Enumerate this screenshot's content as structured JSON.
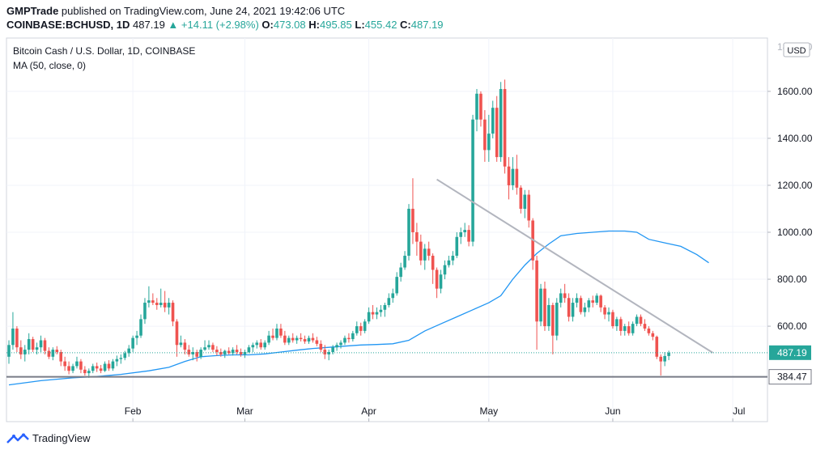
{
  "header": {
    "line1": {
      "author": "GMPTrade",
      "published_text": "published on TradingView.com, June 24, 2021 19:42:06 UTC"
    },
    "line2": {
      "symbol": "COINBASE:BCHUSD, 1D",
      "last": "487.19",
      "change": "▲ +14.11 (+2.98%)",
      "o_label": "O:",
      "o": "473.08",
      "h_label": "H:",
      "h": "495.85",
      "l_label": "L:",
      "l": "455.42",
      "c_label": "C:",
      "c": "487.19"
    }
  },
  "legend": {
    "instrument": "Bitcoin Cash / U.S. Dollar, 1D, COINBASE",
    "indicator": "MA (50, close, 0)"
  },
  "currency_badge": "USD",
  "footer": {
    "brand": "TradingView"
  },
  "colors": {
    "up": "#26a69a",
    "down": "#ef5350",
    "ma": "#2196f3",
    "trendline": "#b2b5be",
    "support": "#787b86",
    "price_label": "#26a69a"
  },
  "chart_data": {
    "type": "candlestick",
    "ylim": [
      300,
      1800
    ],
    "y_ticks": [
      "600.00",
      "800.00",
      "1000.00",
      "1200.00",
      "1400.00",
      "1600.00"
    ],
    "y_tick_values": [
      600,
      800,
      1000,
      1200,
      1400,
      1600
    ],
    "top_tick_partial": "1800.00",
    "x_ticks": [
      "Feb",
      "Mar",
      "Apr",
      "May",
      "Jun",
      "Jul"
    ],
    "x_tick_days": [
      31,
      59,
      90,
      120,
      151,
      181
    ],
    "x_range_days": [
      0,
      183
    ],
    "last_price": {
      "value": 487.19,
      "label": "487.19"
    },
    "support_line": {
      "value": 384.47,
      "label": "384.47"
    },
    "trendline": {
      "from": {
        "day": 107,
        "value": 1225
      },
      "to": {
        "day": 176,
        "value": 487
      }
    },
    "candles": [
      {
        "o": 470,
        "h": 540,
        "l": 440,
        "c": 520
      },
      {
        "o": 520,
        "h": 660,
        "l": 500,
        "c": 590
      },
      {
        "o": 590,
        "h": 600,
        "l": 490,
        "c": 510
      },
      {
        "o": 510,
        "h": 540,
        "l": 460,
        "c": 480
      },
      {
        "o": 480,
        "h": 520,
        "l": 450,
        "c": 500
      },
      {
        "o": 500,
        "h": 570,
        "l": 480,
        "c": 545
      },
      {
        "o": 545,
        "h": 555,
        "l": 490,
        "c": 500
      },
      {
        "o": 500,
        "h": 530,
        "l": 480,
        "c": 510
      },
      {
        "o": 510,
        "h": 560,
        "l": 490,
        "c": 540
      },
      {
        "o": 540,
        "h": 550,
        "l": 480,
        "c": 495
      },
      {
        "o": 495,
        "h": 510,
        "l": 460,
        "c": 470
      },
      {
        "o": 470,
        "h": 510,
        "l": 455,
        "c": 500
      },
      {
        "o": 500,
        "h": 515,
        "l": 480,
        "c": 490
      },
      {
        "o": 490,
        "h": 500,
        "l": 430,
        "c": 450
      },
      {
        "o": 450,
        "h": 470,
        "l": 410,
        "c": 430
      },
      {
        "o": 430,
        "h": 450,
        "l": 395,
        "c": 410
      },
      {
        "o": 410,
        "h": 440,
        "l": 400,
        "c": 430
      },
      {
        "o": 430,
        "h": 470,
        "l": 420,
        "c": 450
      },
      {
        "o": 450,
        "h": 460,
        "l": 400,
        "c": 415
      },
      {
        "o": 415,
        "h": 430,
        "l": 390,
        "c": 400
      },
      {
        "o": 400,
        "h": 420,
        "l": 380,
        "c": 410
      },
      {
        "o": 410,
        "h": 440,
        "l": 400,
        "c": 430
      },
      {
        "o": 430,
        "h": 445,
        "l": 405,
        "c": 420
      },
      {
        "o": 420,
        "h": 435,
        "l": 400,
        "c": 410
      },
      {
        "o": 410,
        "h": 450,
        "l": 405,
        "c": 440
      },
      {
        "o": 440,
        "h": 455,
        "l": 410,
        "c": 420
      },
      {
        "o": 420,
        "h": 460,
        "l": 410,
        "c": 450
      },
      {
        "o": 450,
        "h": 475,
        "l": 430,
        "c": 460
      },
      {
        "o": 460,
        "h": 480,
        "l": 440,
        "c": 465
      },
      {
        "o": 465,
        "h": 495,
        "l": 455,
        "c": 485
      },
      {
        "o": 485,
        "h": 520,
        "l": 470,
        "c": 505
      },
      {
        "o": 505,
        "h": 560,
        "l": 490,
        "c": 550
      },
      {
        "o": 550,
        "h": 580,
        "l": 520,
        "c": 560
      },
      {
        "o": 560,
        "h": 650,
        "l": 550,
        "c": 630
      },
      {
        "o": 630,
        "h": 720,
        "l": 610,
        "c": 700
      },
      {
        "o": 700,
        "h": 770,
        "l": 680,
        "c": 710
      },
      {
        "o": 710,
        "h": 740,
        "l": 690,
        "c": 700
      },
      {
        "o": 700,
        "h": 720,
        "l": 670,
        "c": 690
      },
      {
        "o": 690,
        "h": 760,
        "l": 680,
        "c": 700
      },
      {
        "o": 700,
        "h": 750,
        "l": 660,
        "c": 680
      },
      {
        "o": 680,
        "h": 720,
        "l": 650,
        "c": 700
      },
      {
        "o": 700,
        "h": 710,
        "l": 600,
        "c": 620
      },
      {
        "o": 620,
        "h": 630,
        "l": 470,
        "c": 520
      },
      {
        "o": 520,
        "h": 560,
        "l": 510,
        "c": 530
      },
      {
        "o": 530,
        "h": 545,
        "l": 480,
        "c": 500
      },
      {
        "o": 500,
        "h": 520,
        "l": 470,
        "c": 480
      },
      {
        "o": 480,
        "h": 510,
        "l": 455,
        "c": 490
      },
      {
        "o": 490,
        "h": 500,
        "l": 450,
        "c": 470
      },
      {
        "o": 470,
        "h": 510,
        "l": 460,
        "c": 500
      },
      {
        "o": 500,
        "h": 540,
        "l": 495,
        "c": 510
      },
      {
        "o": 510,
        "h": 540,
        "l": 500,
        "c": 520
      },
      {
        "o": 520,
        "h": 530,
        "l": 490,
        "c": 500
      },
      {
        "o": 500,
        "h": 515,
        "l": 475,
        "c": 490
      },
      {
        "o": 490,
        "h": 505,
        "l": 470,
        "c": 480
      },
      {
        "o": 480,
        "h": 500,
        "l": 465,
        "c": 495
      },
      {
        "o": 495,
        "h": 510,
        "l": 480,
        "c": 485
      },
      {
        "o": 485,
        "h": 510,
        "l": 475,
        "c": 500
      },
      {
        "o": 500,
        "h": 520,
        "l": 480,
        "c": 490
      },
      {
        "o": 490,
        "h": 505,
        "l": 470,
        "c": 480
      },
      {
        "o": 480,
        "h": 500,
        "l": 465,
        "c": 490
      },
      {
        "o": 490,
        "h": 520,
        "l": 485,
        "c": 510
      },
      {
        "o": 510,
        "h": 530,
        "l": 490,
        "c": 520
      },
      {
        "o": 520,
        "h": 540,
        "l": 505,
        "c": 530
      },
      {
        "o": 530,
        "h": 545,
        "l": 500,
        "c": 510
      },
      {
        "o": 510,
        "h": 540,
        "l": 500,
        "c": 530
      },
      {
        "o": 530,
        "h": 580,
        "l": 520,
        "c": 560
      },
      {
        "o": 560,
        "h": 590,
        "l": 540,
        "c": 550
      },
      {
        "o": 550,
        "h": 610,
        "l": 540,
        "c": 590
      },
      {
        "o": 590,
        "h": 610,
        "l": 550,
        "c": 560
      },
      {
        "o": 560,
        "h": 580,
        "l": 520,
        "c": 530
      },
      {
        "o": 530,
        "h": 560,
        "l": 520,
        "c": 550
      },
      {
        "o": 550,
        "h": 570,
        "l": 530,
        "c": 540
      },
      {
        "o": 540,
        "h": 560,
        "l": 525,
        "c": 550
      },
      {
        "o": 550,
        "h": 570,
        "l": 535,
        "c": 545
      },
      {
        "o": 545,
        "h": 560,
        "l": 525,
        "c": 535
      },
      {
        "o": 535,
        "h": 560,
        "l": 525,
        "c": 550
      },
      {
        "o": 550,
        "h": 570,
        "l": 530,
        "c": 540
      },
      {
        "o": 540,
        "h": 555,
        "l": 515,
        "c": 525
      },
      {
        "o": 525,
        "h": 540,
        "l": 490,
        "c": 500
      },
      {
        "o": 500,
        "h": 520,
        "l": 460,
        "c": 480
      },
      {
        "o": 480,
        "h": 500,
        "l": 455,
        "c": 490
      },
      {
        "o": 490,
        "h": 520,
        "l": 480,
        "c": 510
      },
      {
        "o": 510,
        "h": 530,
        "l": 495,
        "c": 520
      },
      {
        "o": 520,
        "h": 540,
        "l": 505,
        "c": 530
      },
      {
        "o": 530,
        "h": 560,
        "l": 520,
        "c": 550
      },
      {
        "o": 550,
        "h": 570,
        "l": 530,
        "c": 545
      },
      {
        "o": 545,
        "h": 580,
        "l": 535,
        "c": 570
      },
      {
        "o": 570,
        "h": 620,
        "l": 560,
        "c": 600
      },
      {
        "o": 600,
        "h": 615,
        "l": 560,
        "c": 580
      },
      {
        "o": 580,
        "h": 630,
        "l": 570,
        "c": 620
      },
      {
        "o": 620,
        "h": 680,
        "l": 610,
        "c": 660
      },
      {
        "o": 660,
        "h": 690,
        "l": 630,
        "c": 650
      },
      {
        "o": 650,
        "h": 680,
        "l": 630,
        "c": 660
      },
      {
        "o": 660,
        "h": 690,
        "l": 640,
        "c": 670
      },
      {
        "o": 670,
        "h": 700,
        "l": 640,
        "c": 690
      },
      {
        "o": 690,
        "h": 740,
        "l": 680,
        "c": 720
      },
      {
        "o": 720,
        "h": 760,
        "l": 700,
        "c": 740
      },
      {
        "o": 740,
        "h": 830,
        "l": 730,
        "c": 810
      },
      {
        "o": 810,
        "h": 870,
        "l": 790,
        "c": 850
      },
      {
        "o": 850,
        "h": 920,
        "l": 840,
        "c": 900
      },
      {
        "o": 900,
        "h": 1120,
        "l": 880,
        "c": 1100
      },
      {
        "o": 1100,
        "h": 1230,
        "l": 950,
        "c": 1000
      },
      {
        "o": 1000,
        "h": 1040,
        "l": 900,
        "c": 960
      },
      {
        "o": 960,
        "h": 990,
        "l": 860,
        "c": 880
      },
      {
        "o": 880,
        "h": 950,
        "l": 840,
        "c": 930
      },
      {
        "o": 930,
        "h": 960,
        "l": 880,
        "c": 900
      },
      {
        "o": 900,
        "h": 910,
        "l": 780,
        "c": 840
      },
      {
        "o": 840,
        "h": 850,
        "l": 720,
        "c": 760
      },
      {
        "o": 760,
        "h": 840,
        "l": 740,
        "c": 820
      },
      {
        "o": 820,
        "h": 880,
        "l": 800,
        "c": 860
      },
      {
        "o": 860,
        "h": 900,
        "l": 850,
        "c": 880
      },
      {
        "o": 880,
        "h": 920,
        "l": 860,
        "c": 900
      },
      {
        "o": 900,
        "h": 1000,
        "l": 890,
        "c": 980
      },
      {
        "o": 980,
        "h": 1020,
        "l": 950,
        "c": 1000
      },
      {
        "o": 1000,
        "h": 1040,
        "l": 980,
        "c": 1010
      },
      {
        "o": 1010,
        "h": 1030,
        "l": 940,
        "c": 960
      },
      {
        "o": 960,
        "h": 1500,
        "l": 940,
        "c": 1480
      },
      {
        "o": 1480,
        "h": 1610,
        "l": 1430,
        "c": 1590
      },
      {
        "o": 1590,
        "h": 1600,
        "l": 1450,
        "c": 1480
      },
      {
        "o": 1480,
        "h": 1520,
        "l": 1300,
        "c": 1350
      },
      {
        "o": 1350,
        "h": 1500,
        "l": 1300,
        "c": 1420
      },
      {
        "o": 1420,
        "h": 1560,
        "l": 1400,
        "c": 1530
      },
      {
        "o": 1530,
        "h": 1580,
        "l": 1300,
        "c": 1320
      },
      {
        "o": 1320,
        "h": 1640,
        "l": 1300,
        "c": 1610
      },
      {
        "o": 1610,
        "h": 1650,
        "l": 1250,
        "c": 1280
      },
      {
        "o": 1280,
        "h": 1320,
        "l": 1140,
        "c": 1200
      },
      {
        "o": 1200,
        "h": 1320,
        "l": 1180,
        "c": 1270
      },
      {
        "o": 1270,
        "h": 1330,
        "l": 1160,
        "c": 1190
      },
      {
        "o": 1190,
        "h": 1200,
        "l": 1080,
        "c": 1100
      },
      {
        "o": 1100,
        "h": 1180,
        "l": 1060,
        "c": 1160
      },
      {
        "o": 1160,
        "h": 1180,
        "l": 1020,
        "c": 1050
      },
      {
        "o": 1050,
        "h": 1060,
        "l": 840,
        "c": 880
      },
      {
        "o": 880,
        "h": 900,
        "l": 500,
        "c": 620
      },
      {
        "o": 620,
        "h": 780,
        "l": 600,
        "c": 760
      },
      {
        "o": 760,
        "h": 790,
        "l": 580,
        "c": 600
      },
      {
        "o": 600,
        "h": 720,
        "l": 580,
        "c": 690
      },
      {
        "o": 690,
        "h": 700,
        "l": 480,
        "c": 560
      },
      {
        "o": 560,
        "h": 720,
        "l": 540,
        "c": 700
      },
      {
        "o": 700,
        "h": 760,
        "l": 680,
        "c": 740
      },
      {
        "o": 740,
        "h": 780,
        "l": 700,
        "c": 720
      },
      {
        "o": 720,
        "h": 740,
        "l": 620,
        "c": 640
      },
      {
        "o": 640,
        "h": 720,
        "l": 620,
        "c": 700
      },
      {
        "o": 700,
        "h": 740,
        "l": 680,
        "c": 720
      },
      {
        "o": 720,
        "h": 730,
        "l": 650,
        "c": 660
      },
      {
        "o": 660,
        "h": 700,
        "l": 640,
        "c": 680
      },
      {
        "o": 680,
        "h": 720,
        "l": 660,
        "c": 710
      },
      {
        "o": 710,
        "h": 730,
        "l": 680,
        "c": 700
      },
      {
        "o": 700,
        "h": 740,
        "l": 690,
        "c": 730
      },
      {
        "o": 730,
        "h": 735,
        "l": 660,
        "c": 680
      },
      {
        "o": 680,
        "h": 690,
        "l": 630,
        "c": 650
      },
      {
        "o": 650,
        "h": 680,
        "l": 620,
        "c": 660
      },
      {
        "o": 660,
        "h": 670,
        "l": 590,
        "c": 600
      },
      {
        "o": 600,
        "h": 640,
        "l": 580,
        "c": 630
      },
      {
        "o": 630,
        "h": 640,
        "l": 560,
        "c": 580
      },
      {
        "o": 580,
        "h": 610,
        "l": 560,
        "c": 600
      },
      {
        "o": 600,
        "h": 620,
        "l": 560,
        "c": 570
      },
      {
        "o": 570,
        "h": 620,
        "l": 560,
        "c": 610
      },
      {
        "o": 610,
        "h": 650,
        "l": 600,
        "c": 640
      },
      {
        "o": 640,
        "h": 650,
        "l": 600,
        "c": 610
      },
      {
        "o": 610,
        "h": 630,
        "l": 580,
        "c": 590
      },
      {
        "o": 590,
        "h": 600,
        "l": 560,
        "c": 570
      },
      {
        "o": 570,
        "h": 580,
        "l": 540,
        "c": 555
      },
      {
        "o": 555,
        "h": 560,
        "l": 460,
        "c": 470
      },
      {
        "o": 470,
        "h": 480,
        "l": 390,
        "c": 450
      },
      {
        "o": 450,
        "h": 490,
        "l": 430,
        "c": 473
      },
      {
        "o": 473.08,
        "h": 495.85,
        "l": 455.42,
        "c": 487.19
      }
    ],
    "ma": [
      [
        0,
        350
      ],
      [
        8,
        368
      ],
      [
        16,
        380
      ],
      [
        22,
        386
      ],
      [
        28,
        395
      ],
      [
        35,
        410
      ],
      [
        40,
        425
      ],
      [
        44,
        450
      ],
      [
        48,
        470
      ],
      [
        52,
        475
      ],
      [
        56,
        478
      ],
      [
        60,
        478
      ],
      [
        64,
        482
      ],
      [
        68,
        490
      ],
      [
        72,
        498
      ],
      [
        76,
        505
      ],
      [
        80,
        510
      ],
      [
        84,
        515
      ],
      [
        88,
        520
      ],
      [
        92,
        522
      ],
      [
        96,
        525
      ],
      [
        100,
        540
      ],
      [
        104,
        580
      ],
      [
        108,
        610
      ],
      [
        112,
        640
      ],
      [
        116,
        670
      ],
      [
        120,
        700
      ],
      [
        123,
        730
      ],
      [
        126,
        800
      ],
      [
        129,
        860
      ],
      [
        132,
        910
      ],
      [
        135,
        950
      ],
      [
        138,
        985
      ],
      [
        142,
        995
      ],
      [
        146,
        1000
      ],
      [
        150,
        1005
      ],
      [
        154,
        1005
      ],
      [
        157,
        1000
      ],
      [
        160,
        970
      ],
      [
        164,
        955
      ],
      [
        168,
        940
      ],
      [
        172,
        905
      ],
      [
        175,
        870
      ]
    ]
  }
}
